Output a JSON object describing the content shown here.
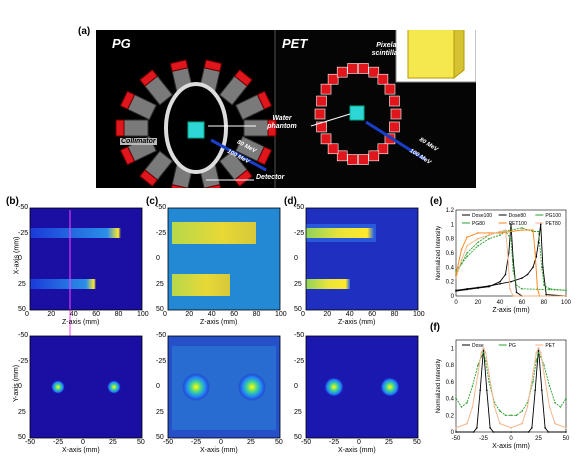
{
  "panel_labels": {
    "a": "(a)",
    "b": "(b)",
    "c": "(c)",
    "d": "(d)",
    "e": "(e)",
    "f": "(f)"
  },
  "illustration": {
    "pg_label": "PG",
    "pet_label": "PET",
    "pixelated_scintillator": "Pixelated scintillator",
    "water_phantom": "Water phantom",
    "collimator": "Collimator",
    "detector": "Detector",
    "beam_80": "80 MeV",
    "beam_100": "100 MeV"
  },
  "maps": {
    "top_row": {
      "xlabel": "Z-axis (mm)",
      "b_ylabel": "X-axis (mm)",
      "xticks": [
        "0",
        "20",
        "40",
        "60",
        "80",
        "100"
      ],
      "yticks": [
        "-50",
        "-25",
        "0",
        "25",
        "50"
      ]
    },
    "bottom_row": {
      "xlabel": "X-axis (mm)",
      "b_ylabel": "Y-axis (mm)",
      "xticks": [
        "-50",
        "-25",
        "0",
        "25",
        "50"
      ],
      "yticks": [
        "-50",
        "-25",
        "0",
        "25",
        "50"
      ]
    }
  },
  "chart_data": [
    {
      "panel": "e",
      "type": "line",
      "xlabel": "Z-axis (mm)",
      "ylabel": "Normalized Intensity",
      "xlim": [
        0,
        100
      ],
      "ylim": [
        0,
        1.2
      ],
      "xticks": [
        "0",
        "20",
        "40",
        "60",
        "80",
        "100"
      ],
      "yticks": [
        "0",
        "0.2",
        "0.4",
        "0.6",
        "0.8",
        "1",
        "1.2"
      ],
      "legend": [
        "Dose100",
        "Dose80",
        "PG100",
        "PG80",
        "PET100",
        "PET80"
      ],
      "series": [
        {
          "name": "Dose100",
          "color": "#000000",
          "x": [
            0,
            10,
            20,
            30,
            40,
            50,
            60,
            65,
            70,
            73,
            75,
            77,
            79,
            82,
            100
          ],
          "y": [
            0.08,
            0.1,
            0.12,
            0.14,
            0.17,
            0.2,
            0.25,
            0.3,
            0.4,
            0.55,
            0.75,
            1.0,
            0.4,
            0.02,
            0.0
          ]
        },
        {
          "name": "Dose80",
          "color": "#000000",
          "x": [
            0,
            10,
            20,
            30,
            40,
            45,
            48,
            50,
            52,
            55,
            60,
            100
          ],
          "y": [
            0.07,
            0.09,
            0.11,
            0.13,
            0.2,
            0.3,
            0.6,
            1.0,
            0.5,
            0.05,
            0.0,
            0.0
          ]
        },
        {
          "name": "PG100",
          "color": "#2ca02c",
          "x": [
            0,
            5,
            10,
            20,
            30,
            40,
            50,
            60,
            70,
            75,
            78,
            80,
            85,
            100
          ],
          "y": [
            0.35,
            0.45,
            0.6,
            0.75,
            0.85,
            0.9,
            0.92,
            0.95,
            0.9,
            0.9,
            0.4,
            0.15,
            0.1,
            0.08
          ]
        },
        {
          "name": "PG80",
          "color": "#2ca02c",
          "x": [
            0,
            5,
            10,
            20,
            30,
            40,
            45,
            50,
            52,
            55,
            60,
            100
          ],
          "y": [
            0.3,
            0.45,
            0.55,
            0.7,
            0.8,
            0.85,
            0.9,
            0.8,
            0.35,
            0.15,
            0.1,
            0.08
          ]
        },
        {
          "name": "PET100",
          "color": "#ff7f0e",
          "x": [
            0,
            5,
            10,
            20,
            30,
            40,
            50,
            60,
            70,
            72,
            74,
            76,
            100
          ],
          "y": [
            0.3,
            0.65,
            0.82,
            0.88,
            0.88,
            0.88,
            0.9,
            0.92,
            0.92,
            0.6,
            0.1,
            0.0,
            0.0
          ]
        },
        {
          "name": "PET80",
          "color": "#f4b183",
          "x": [
            0,
            5,
            10,
            20,
            30,
            40,
            45,
            47,
            49,
            52,
            100
          ],
          "y": [
            0.25,
            0.5,
            0.7,
            0.8,
            0.85,
            0.9,
            0.92,
            0.6,
            0.1,
            0.0,
            0.0
          ]
        }
      ]
    },
    {
      "panel": "f",
      "type": "line",
      "xlabel": "X-axis (mm)",
      "ylabel": "Normalized Intensity",
      "xlim": [
        -50,
        50
      ],
      "ylim": [
        0,
        1.1
      ],
      "xticks": [
        "-50",
        "-25",
        "0",
        "25",
        "50"
      ],
      "yticks": [
        "0",
        "0.2",
        "0.4",
        "0.6",
        "0.8",
        "1"
      ],
      "legend": [
        "Dose",
        "PG",
        "PET"
      ],
      "series": [
        {
          "name": "Dose",
          "color": "#000000",
          "x": [
            -50,
            -34,
            -31,
            -28,
            -25,
            -22,
            -19,
            -16,
            0,
            16,
            19,
            22,
            25,
            28,
            31,
            34,
            50
          ],
          "y": [
            0,
            0,
            0.05,
            0.5,
            1.0,
            0.5,
            0.05,
            0,
            0,
            0,
            0.05,
            0.5,
            1.0,
            0.5,
            0.05,
            0,
            0
          ]
        },
        {
          "name": "PG",
          "color": "#2ca02c",
          "x": [
            -50,
            -45,
            -40,
            -35,
            -30,
            -27,
            -25,
            -23,
            -20,
            -15,
            -10,
            -5,
            0,
            5,
            10,
            15,
            20,
            23,
            25,
            27,
            30,
            35,
            40,
            45,
            50
          ],
          "y": [
            0.4,
            0.3,
            0.35,
            0.55,
            0.8,
            0.9,
            0.95,
            0.85,
            0.6,
            0.35,
            0.25,
            0.2,
            0.2,
            0.2,
            0.25,
            0.35,
            0.6,
            0.85,
            0.95,
            0.9,
            0.8,
            0.55,
            0.35,
            0.3,
            0.4
          ]
        },
        {
          "name": "PET",
          "color": "#f4b183",
          "x": [
            -50,
            -40,
            -35,
            -30,
            -27,
            -25,
            -23,
            -20,
            -15,
            -10,
            0,
            10,
            15,
            20,
            23,
            25,
            27,
            30,
            35,
            40,
            50
          ],
          "y": [
            0.05,
            0.1,
            0.3,
            0.7,
            0.95,
            1.0,
            0.95,
            0.7,
            0.3,
            0.1,
            0.05,
            0.1,
            0.3,
            0.7,
            0.95,
            1.0,
            0.95,
            0.7,
            0.3,
            0.1,
            0.05
          ]
        }
      ]
    }
  ]
}
